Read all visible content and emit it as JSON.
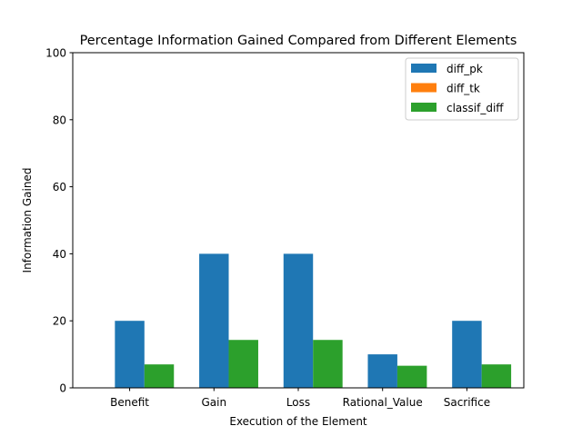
{
  "chart_data": {
    "type": "bar",
    "title": "Percentage Information Gained Compared from Different Elements",
    "xlabel": "Execution of the Element",
    "ylabel": "Information Gained",
    "categories": [
      "Benefit",
      "Gain",
      "Loss",
      "Rational_Value",
      "Sacrifice"
    ],
    "series": [
      {
        "name": "diff_pk",
        "color": "#1f77b4",
        "values": [
          20,
          40,
          40,
          10,
          20
        ]
      },
      {
        "name": "diff_tk",
        "color": "#ff7f0e",
        "values": [
          0,
          0,
          0,
          0,
          0
        ]
      },
      {
        "name": "classif_diff",
        "color": "#2ca02c",
        "values": [
          7,
          14.3,
          14.3,
          6.6,
          7
        ]
      }
    ],
    "ylim": [
      0,
      100
    ],
    "yticks": [
      0,
      20,
      40,
      60,
      80,
      100
    ],
    "grid": false,
    "legend_position": "top-right"
  }
}
